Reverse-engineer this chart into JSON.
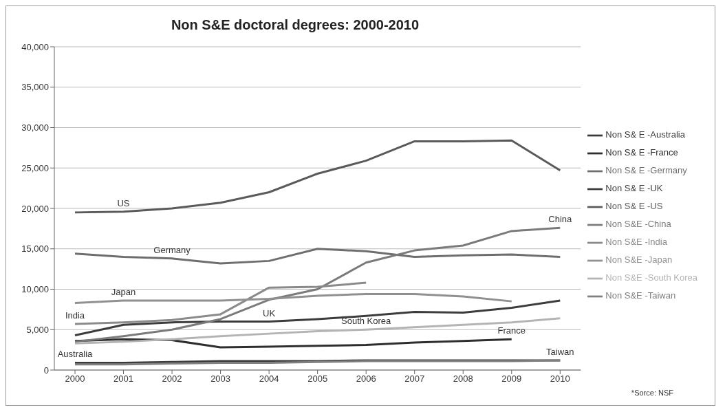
{
  "chart_data": {
    "type": "line",
    "title": "Non S&E doctoral degrees: 2000-2010",
    "categories": [
      "2000",
      "2001",
      "2002",
      "2003",
      "2004",
      "2005",
      "2006",
      "2007",
      "2008",
      "2009",
      "2010"
    ],
    "series": [
      {
        "name": "Non S& E -Australia",
        "color": "#3a3a3a",
        "values": [
          900,
          900,
          1000,
          1100,
          1100,
          1100,
          1200,
          1200,
          1200,
          1200,
          1200
        ]
      },
      {
        "name": "Non S& E -France",
        "color": "#2e2e2e",
        "values": [
          3600,
          3800,
          3700,
          2800,
          2900,
          3000,
          3100,
          3400,
          3600,
          3800,
          null
        ]
      },
      {
        "name": "Non S& E -Germany",
        "color": "#6e6e6e",
        "values": [
          14400,
          14000,
          13800,
          13200,
          13500,
          15000,
          14700,
          14000,
          14200,
          14300,
          14000
        ]
      },
      {
        "name": "Non S& E -UK",
        "color": "#3c3c3c",
        "values": [
          4300,
          5600,
          5900,
          6000,
          6000,
          6300,
          6700,
          7200,
          7100,
          7700,
          8600
        ]
      },
      {
        "name": "Non S& E -US",
        "color": "#5a5a5a",
        "values": [
          19500,
          19600,
          20000,
          20700,
          22000,
          24300,
          25900,
          28300,
          28300,
          28400,
          24700
        ]
      },
      {
        "name": "Non S&E -China",
        "color": "#7a7a7a",
        "values": [
          3500,
          4200,
          5000,
          6300,
          8700,
          10000,
          13300,
          14800,
          15400,
          17200,
          17600
        ]
      },
      {
        "name": "Non S&E -India",
        "color": "#8a8a8a",
        "values": [
          5700,
          5900,
          6200,
          6900,
          10200,
          10300,
          10800,
          null,
          null,
          null,
          null
        ]
      },
      {
        "name": "Non S&E -Japan",
        "color": "#909090",
        "values": [
          8300,
          8600,
          8600,
          8600,
          8800,
          9200,
          9400,
          9400,
          9100,
          8500,
          null
        ]
      },
      {
        "name": "Non S&E -South Korea",
        "color": "#b4b4b4",
        "values": [
          3300,
          3500,
          3800,
          4200,
          4500,
          4800,
          5000,
          5300,
          5600,
          5900,
          6400
        ]
      },
      {
        "name": "Non S&E -Taiwan",
        "color": "#808080",
        "values": [
          700,
          700,
          800,
          900,
          900,
          1000,
          1100,
          1100,
          1100,
          1100,
          1200
        ]
      }
    ],
    "ylim": [
      0,
      40000
    ],
    "yticks": [
      {
        "value": 0,
        "label": "0"
      },
      {
        "value": 5000,
        "label": "5,000"
      },
      {
        "value": 10000,
        "label": "10,000"
      },
      {
        "value": 15000,
        "label": "15,000"
      },
      {
        "value": 20000,
        "label": "20,000"
      },
      {
        "value": 25000,
        "label": "25,000"
      },
      {
        "value": 30000,
        "label": "30,000"
      },
      {
        "value": 35000,
        "label": "35,000"
      },
      {
        "value": 40000,
        "label": "40,000"
      }
    ],
    "grid": "y",
    "legend": "right",
    "marker": "none",
    "line_style": "solid",
    "annotations": [
      {
        "text": "US",
        "x": "2001",
        "y": 19600
      },
      {
        "text": "Germany",
        "x": "2002",
        "y": 13800
      },
      {
        "text": "Japan",
        "x": "2001",
        "y": 8600
      },
      {
        "text": "India",
        "x": "2000",
        "y": 5700
      },
      {
        "text": "Australia",
        "x": "2000",
        "y": 900
      },
      {
        "text": "UK",
        "x": "2004",
        "y": 6000
      },
      {
        "text": "South Korea",
        "x": "2006",
        "y": 5000
      },
      {
        "text": "France",
        "x": "2009",
        "y": 3800
      },
      {
        "text": "China",
        "x": "2010",
        "y": 17600
      },
      {
        "text": "Taiwan",
        "x": "2010",
        "y": 1200
      },
      "*Sorce: NSF"
    ]
  }
}
